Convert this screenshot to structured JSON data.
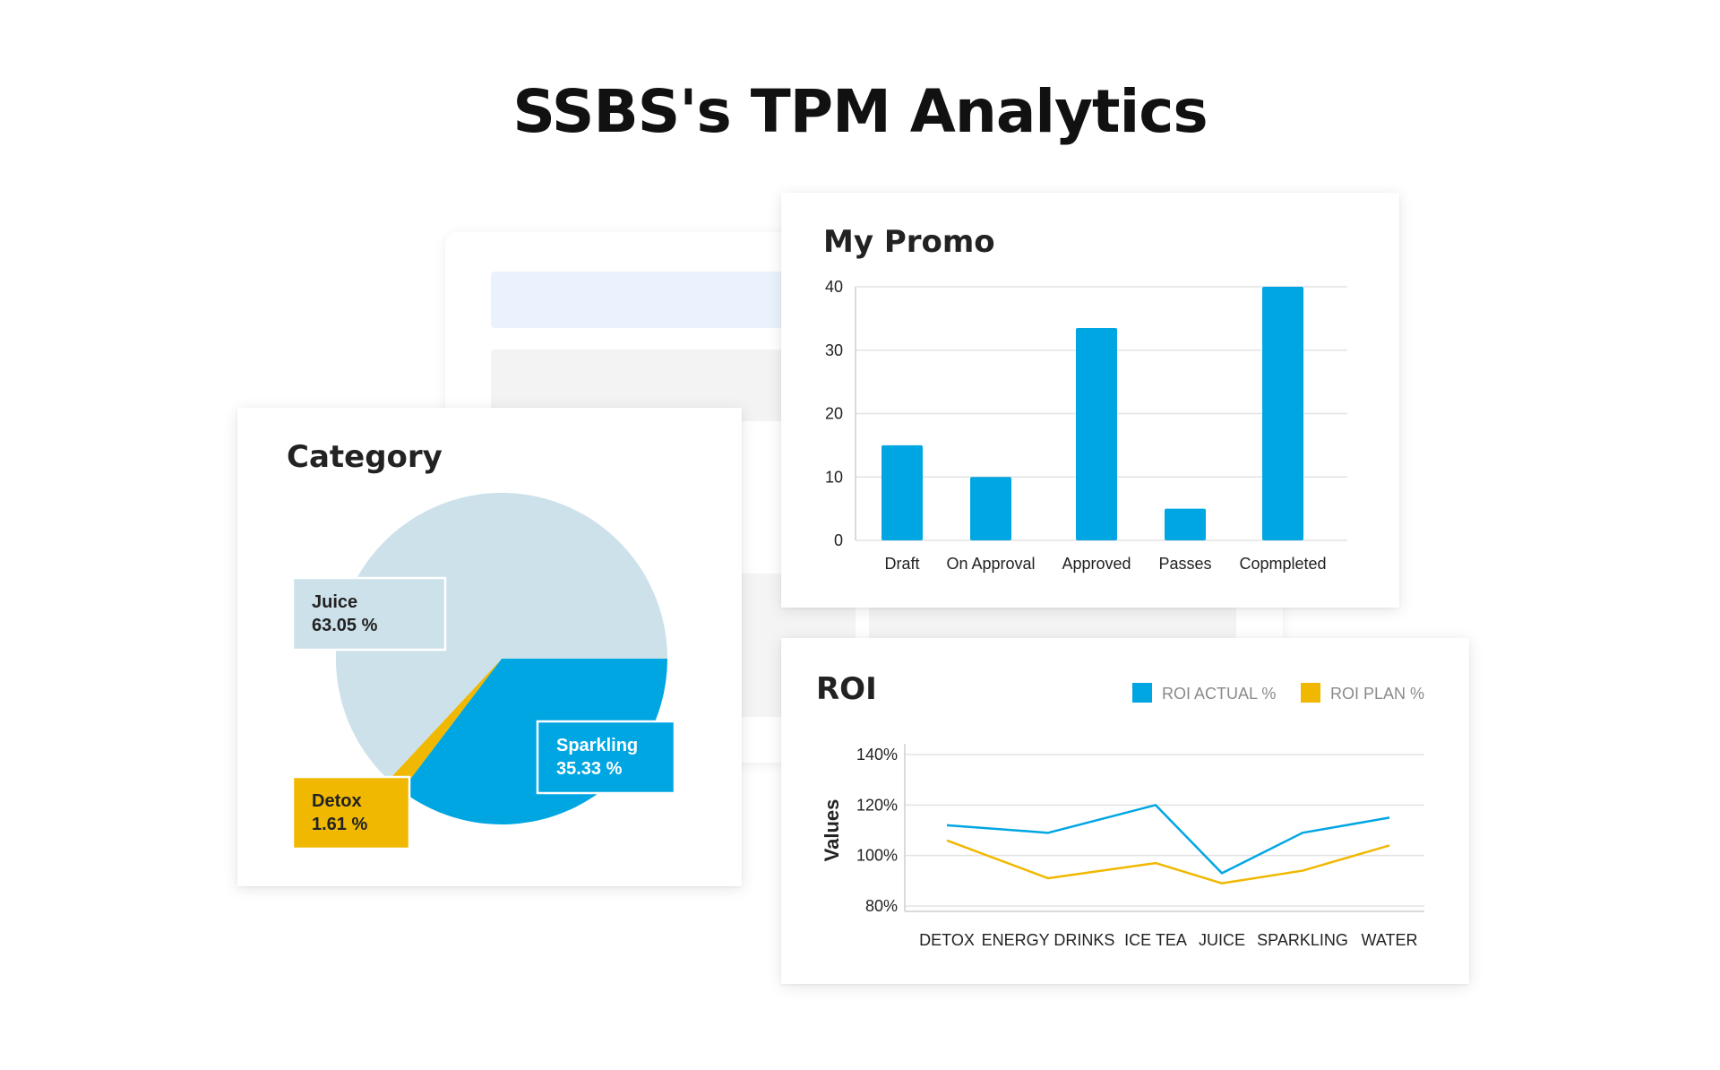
{
  "page": {
    "title": "SSBS's TPM Analytics"
  },
  "colors": {
    "blue": "#00a6e2",
    "yellow": "#f0b800",
    "light_blue": "#cce1ea",
    "grid": "#e3e3e3"
  },
  "chart_data": [
    {
      "type": "pie",
      "title": "Category",
      "slices": [
        {
          "label": "Juice",
          "value": 63.05,
          "value_text": "63.05 %",
          "color": "#cce1ea"
        },
        {
          "label": "Sparkling",
          "value": 35.33,
          "value_text": "35.33 %",
          "color": "#00a6e2"
        },
        {
          "label": "Detox",
          "value": 1.61,
          "value_text": "1.61 %",
          "color": "#f0b800"
        }
      ]
    },
    {
      "type": "bar",
      "title": "My Promo",
      "categories": [
        "Draft",
        "On Approval",
        "Approved",
        "Passes",
        "Copmpleted"
      ],
      "values": [
        15,
        10,
        33.5,
        5,
        40
      ],
      "ylim": [
        0,
        40
      ],
      "yticks": [
        0,
        10,
        20,
        30,
        40
      ],
      "grid": true,
      "color": "#00a6e2"
    },
    {
      "type": "line",
      "title": "ROI",
      "ylabel": "Values",
      "categories": [
        "DETOX",
        "ENERGY DRINKS",
        "ICE TEA",
        "JUICE",
        "SPARKLING",
        "WATER"
      ],
      "yticks": [
        "80%",
        "100%",
        "120%",
        "140%"
      ],
      "ylim": [
        80,
        140
      ],
      "grid": true,
      "legend_position": "top-right",
      "series": [
        {
          "name": "ROI ACTUAL %",
          "color": "#00a6e2",
          "values": [
            112,
            109,
            120,
            93,
            109,
            115
          ]
        },
        {
          "name": "ROI PLAN %",
          "color": "#f0b800",
          "values": [
            106,
            91,
            97,
            89,
            94,
            104
          ]
        }
      ]
    }
  ]
}
